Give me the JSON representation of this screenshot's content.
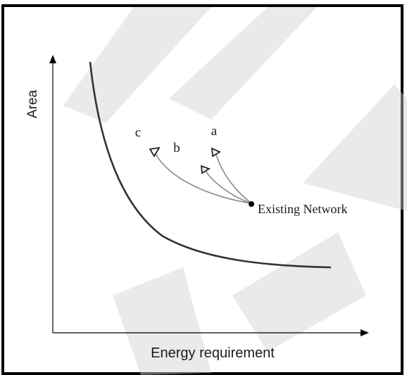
{
  "diagram": {
    "y_axis_label": "Area",
    "x_axis_label": "Energy requirement",
    "point_label": "Existing Network",
    "path_labels": {
      "a": "a",
      "b": "b",
      "c": "c"
    }
  },
  "colors": {
    "curve": "#333333",
    "paths": "#8a8a8a",
    "frame": "#000000"
  }
}
